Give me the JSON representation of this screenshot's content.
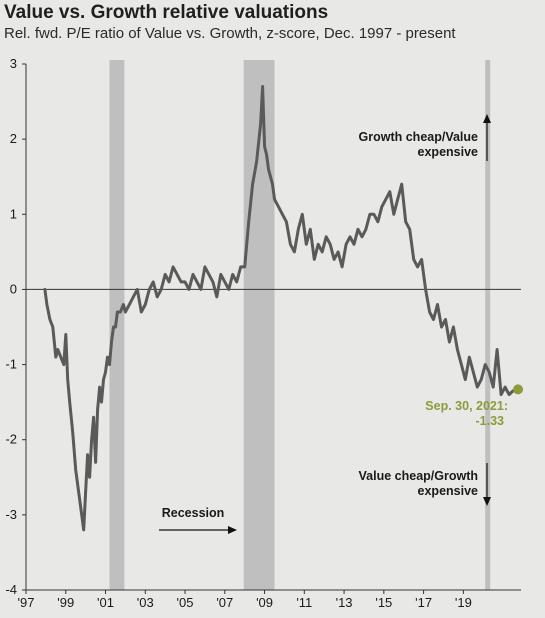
{
  "chart_data": {
    "type": "line",
    "title": "Value vs. Growth relative valuations",
    "subtitle": "Rel. fwd. P/E ratio of Value vs. Growth, z-score, Dec. 1997 - present",
    "ylim": [
      -4,
      3
    ],
    "xlim": [
      1997.0,
      2021.9
    ],
    "yticks": [
      3,
      2,
      1,
      0,
      -1,
      -2,
      -3,
      -4
    ],
    "ytick_labels": [
      "3",
      "2",
      "1",
      "0",
      "-1",
      "-2",
      "-3",
      "-4"
    ],
    "xticks": [
      1997,
      1999,
      2001,
      2003,
      2005,
      2007,
      2009,
      2011,
      2013,
      2015,
      2017,
      2019
    ],
    "xtick_labels": [
      "'97",
      "'99",
      "'01",
      "'03",
      "'05",
      "'07",
      "'09",
      "'11",
      "'13",
      "'15",
      "'17",
      "'19"
    ],
    "recessions": [
      {
        "start": 2001.2,
        "end": 2001.95
      },
      {
        "start": 2007.95,
        "end": 2009.5
      },
      {
        "start": 2020.1,
        "end": 2020.35
      }
    ],
    "series": [
      {
        "name": "",
        "color": "#5a5a5a",
        "x": [
          1997.95,
          1998.05,
          1998.2,
          1998.35,
          1998.5,
          1998.6,
          1998.75,
          1998.9,
          1999.0,
          1999.1,
          1999.2,
          1999.35,
          1999.5,
          1999.6,
          1999.75,
          1999.9,
          2000.0,
          2000.1,
          2000.2,
          2000.3,
          2000.4,
          2000.5,
          2000.6,
          2000.7,
          2000.8,
          2000.9,
          2001.0,
          2001.1,
          2001.2,
          2001.3,
          2001.4,
          2001.5,
          2001.6,
          2001.75,
          2001.9,
          2002.0,
          2002.2,
          2002.4,
          2002.6,
          2002.8,
          2003.0,
          2003.2,
          2003.4,
          2003.6,
          2003.8,
          2004.0,
          2004.2,
          2004.4,
          2004.6,
          2004.8,
          2005.0,
          2005.2,
          2005.4,
          2005.6,
          2005.8,
          2006.0,
          2006.2,
          2006.4,
          2006.6,
          2006.8,
          2007.0,
          2007.2,
          2007.4,
          2007.6,
          2007.8,
          2008.0,
          2008.2,
          2008.4,
          2008.6,
          2008.8,
          2008.9,
          2009.0,
          2009.1,
          2009.2,
          2009.3,
          2009.4,
          2009.5,
          2009.7,
          2009.9,
          2010.1,
          2010.3,
          2010.5,
          2010.7,
          2010.9,
          2011.1,
          2011.3,
          2011.5,
          2011.7,
          2011.9,
          2012.1,
          2012.3,
          2012.5,
          2012.7,
          2012.9,
          2013.1,
          2013.3,
          2013.5,
          2013.7,
          2013.9,
          2014.1,
          2014.3,
          2014.5,
          2014.7,
          2014.9,
          2015.1,
          2015.3,
          2015.5,
          2015.7,
          2015.9,
          2016.1,
          2016.3,
          2016.5,
          2016.7,
          2016.9,
          2017.1,
          2017.3,
          2017.5,
          2017.7,
          2017.9,
          2018.1,
          2018.3,
          2018.5,
          2018.7,
          2018.9,
          2019.1,
          2019.3,
          2019.5,
          2019.7,
          2019.9,
          2020.1,
          2020.3,
          2020.5,
          2020.7,
          2020.9,
          2021.1,
          2021.3,
          2021.5,
          2021.75
        ],
        "values": [
          0.0,
          -0.2,
          -0.4,
          -0.5,
          -0.9,
          -0.8,
          -0.9,
          -1.0,
          -0.6,
          -1.2,
          -1.5,
          -1.9,
          -2.4,
          -2.6,
          -2.9,
          -3.2,
          -2.7,
          -2.2,
          -2.5,
          -2.0,
          -1.7,
          -2.3,
          -1.6,
          -1.3,
          -1.5,
          -1.2,
          -1.1,
          -0.9,
          -1.0,
          -0.7,
          -0.5,
          -0.5,
          -0.3,
          -0.3,
          -0.2,
          -0.3,
          -0.2,
          -0.1,
          0.0,
          -0.3,
          -0.2,
          0.0,
          0.1,
          -0.1,
          0.0,
          0.2,
          0.1,
          0.3,
          0.2,
          0.1,
          0.1,
          0.0,
          0.2,
          0.1,
          0.0,
          0.3,
          0.2,
          0.1,
          -0.1,
          0.2,
          0.1,
          0.0,
          0.2,
          0.1,
          0.3,
          0.3,
          0.9,
          1.4,
          1.7,
          2.2,
          2.7,
          1.9,
          1.8,
          1.6,
          1.5,
          1.4,
          1.2,
          1.1,
          1.0,
          0.9,
          0.6,
          0.5,
          0.8,
          1.0,
          0.6,
          0.8,
          0.4,
          0.6,
          0.5,
          0.7,
          0.6,
          0.4,
          0.5,
          0.3,
          0.6,
          0.7,
          0.6,
          0.8,
          0.7,
          0.8,
          1.0,
          1.0,
          0.9,
          1.1,
          1.2,
          1.3,
          1.0,
          1.2,
          1.4,
          0.9,
          0.8,
          0.4,
          0.3,
          0.4,
          0.0,
          -0.3,
          -0.4,
          -0.2,
          -0.5,
          -0.4,
          -0.7,
          -0.5,
          -0.8,
          -1.0,
          -1.2,
          -0.9,
          -1.1,
          -1.3,
          -1.2,
          -1.0,
          -1.1,
          -1.3,
          -0.8,
          -1.4,
          -1.3,
          -1.4,
          -1.35,
          -1.33
        ]
      }
    ],
    "last_point": {
      "x": 2021.75,
      "y": -1.33,
      "color": "#8e9a3c"
    },
    "annotations": {
      "growth_cheap": [
        "Growth cheap/Value",
        "expensive"
      ],
      "value_cheap": [
        "Value cheap/Growth",
        "expensive"
      ],
      "recession": "Recession",
      "callout": [
        "Sep. 30, 2021:",
        "-1.33"
      ]
    },
    "colors": {
      "background": "#e8e8e6",
      "recession_band": "#bfbfbf",
      "line": "#5a5a5a",
      "axis": "#333333"
    }
  }
}
